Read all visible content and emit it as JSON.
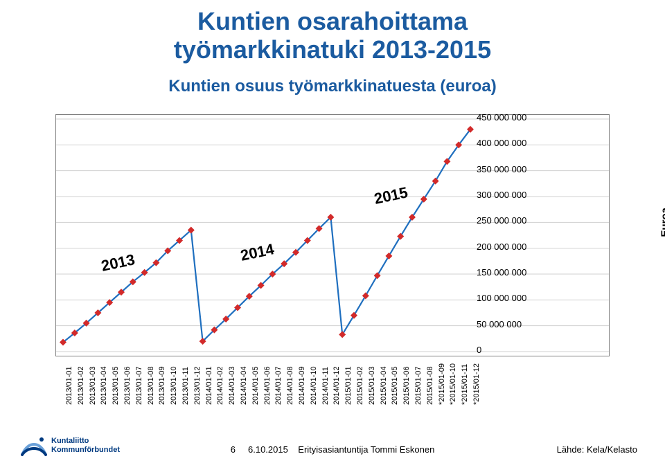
{
  "title_line1": "Kuntien osarahoittama",
  "title_line2": "työmarkkinatuki 2013-2015",
  "subtitle": "Kuntien osuus työmarkkinatuesta (euroa)",
  "y_axis_title": "Euroa",
  "chart": {
    "type": "line",
    "background_color": "#ffffff",
    "border_color": "#7f7f7f",
    "grid_color": "#d0d0d0",
    "line_color": "#1f6fbf",
    "line_width": 2.2,
    "marker_color": "#d22a2a",
    "marker_size": 5,
    "marker_shape": "diamond",
    "ylim": [
      0,
      450000000
    ],
    "ytick_step": 50000000,
    "ytick_labels": [
      "0",
      "50 000 000",
      "100 000 000",
      "150 000 000",
      "200 000 000",
      "250 000 000",
      "300 000 000",
      "350 000 000",
      "400 000 000",
      "450 000 000"
    ],
    "x_labels": [
      "2013/01-01",
      "2013/01-02",
      "2013/01-03",
      "2013/01-04",
      "2013/01-05",
      "2013/01-06",
      "2013/01-07",
      "2013/01-08",
      "2013/01-09",
      "2013/01-10",
      "2013/01-11",
      "2013/01-12",
      "2014/01-01",
      "2014/01-02",
      "2014/01-03",
      "2014/01-04",
      "2014/01-05",
      "2014/01-06",
      "2014/01-07",
      "2014/01-08",
      "2014/01-09",
      "2014/01-10",
      "2014/01-11",
      "2014/01-12",
      "2015/01-01",
      "2015/01-02",
      "2015/01-03",
      "2015/01-04",
      "2015/01-05",
      "2015/01-06",
      "2015/01-07",
      "2015/01-08",
      "*2015/01-09",
      "*2015/01-10",
      "*2015/01-11",
      "*2015/01-12"
    ],
    "values": [
      18000000,
      36000000,
      55000000,
      75000000,
      95000000,
      115000000,
      135000000,
      153000000,
      172000000,
      195000000,
      215000000,
      235000000,
      20000000,
      42000000,
      63000000,
      85000000,
      107000000,
      128000000,
      150000000,
      170000000,
      192000000,
      215000000,
      238000000,
      260000000,
      33000000,
      70000000,
      108000000,
      147000000,
      185000000,
      223000000,
      260000000,
      295000000,
      330000000,
      368000000,
      400000000,
      430000000
    ],
    "period_labels": [
      {
        "text": "2013",
        "x_index": 4.5,
        "y_value": 150000000
      },
      {
        "text": "2014",
        "x_index": 16.5,
        "y_value": 170000000
      },
      {
        "text": "2015",
        "x_index": 28.0,
        "y_value": 280000000
      }
    ],
    "x_label_fontsize": 11,
    "y_label_fontsize": 13,
    "period_fontsize": 22
  },
  "footer": {
    "logo_line1": "Kuntaliitto",
    "logo_line2": "Kommunförbundet",
    "page_num": "6",
    "date": "6.10.2015",
    "author": "Erityisasiantuntija Tommi Eskonen",
    "source": "Lähde: Kela/Kelasto"
  },
  "colors": {
    "title": "#1b5ba0",
    "logo_primary": "#003a80",
    "logo_wave": "#6aa0d8"
  }
}
